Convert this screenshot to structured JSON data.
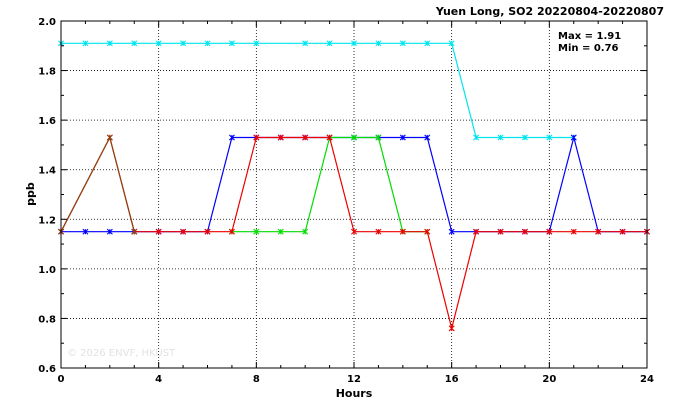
{
  "chart_data": {
    "type": "line",
    "title": "Yuen Long, SO2 20220804-20220807",
    "xlabel": "Hours",
    "ylabel": "ppb",
    "xlim": [
      0,
      24
    ],
    "ylim": [
      0.6,
      2.0
    ],
    "xticks": [
      0,
      4,
      8,
      12,
      16,
      20,
      24
    ],
    "yticks": [
      0.6,
      0.8,
      1.0,
      1.2,
      1.4,
      1.6,
      1.8,
      2.0
    ],
    "ytick_labels": [
      "0.6",
      "0.8",
      "1.0",
      "1.2",
      "1.4",
      "1.6",
      "1.8",
      "2.0"
    ],
    "grid": true,
    "stats": [
      "Max = 1.91",
      "Min = 0.76"
    ],
    "watermark": "© 2026 ENVF, HKUST",
    "x": [
      0,
      1,
      2,
      3,
      4,
      5,
      6,
      7,
      8,
      9,
      10,
      11,
      12,
      13,
      14,
      15,
      16,
      17,
      18,
      19,
      20,
      21,
      22,
      23,
      24
    ],
    "series": [
      {
        "color": "#00e5ee",
        "values": [
          1.91,
          1.91,
          1.91,
          1.91,
          1.91,
          1.91,
          1.91,
          1.91,
          1.91,
          null,
          1.91,
          1.91,
          1.91,
          1.91,
          1.91,
          1.91,
          1.91,
          1.53,
          1.53,
          1.53,
          1.53,
          1.53,
          null,
          null,
          null
        ]
      },
      {
        "color": "#0000ff",
        "values": [
          1.15,
          1.15,
          1.15,
          1.15,
          1.15,
          1.15,
          1.15,
          1.53,
          1.53,
          1.53,
          1.53,
          1.53,
          1.53,
          1.53,
          1.53,
          1.53,
          1.15,
          1.15,
          1.15,
          1.15,
          1.15,
          1.53,
          1.15,
          1.15,
          1.15
        ]
      },
      {
        "color": "#00dd00",
        "values": [
          null,
          null,
          null,
          null,
          null,
          null,
          null,
          1.15,
          1.15,
          1.15,
          1.15,
          1.53,
          1.53,
          1.53,
          1.15,
          1.15,
          null,
          null,
          null,
          null,
          null,
          null,
          null,
          null,
          null
        ]
      },
      {
        "color": "#ee0000",
        "values": [
          1.15,
          null,
          1.53,
          1.15,
          1.15,
          1.15,
          1.15,
          1.15,
          1.53,
          1.53,
          1.53,
          1.53,
          1.15,
          1.15,
          1.15,
          1.15,
          0.76,
          1.15,
          1.15,
          1.15,
          1.15,
          1.15,
          1.15,
          1.15,
          1.15
        ]
      },
      {
        "color": "#8b4513",
        "values": [
          1.15,
          null,
          1.53,
          1.15,
          null,
          null,
          null,
          null,
          null,
          null,
          null,
          null,
          null,
          null,
          null,
          null,
          null,
          null,
          null,
          null,
          null,
          null,
          null,
          null,
          null
        ]
      }
    ]
  }
}
